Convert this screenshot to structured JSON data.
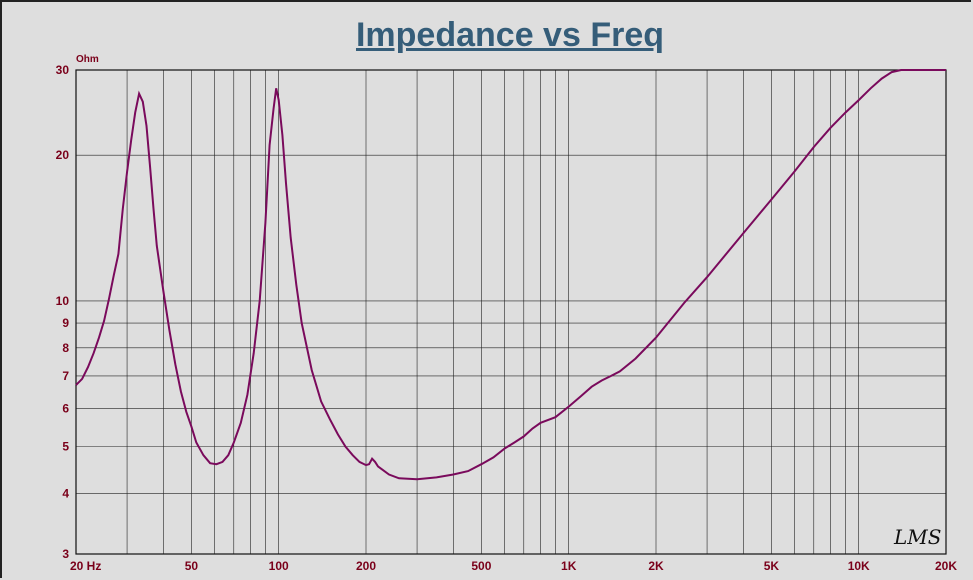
{
  "chart_data": {
    "type": "line",
    "title": "Impedance vs Freq",
    "ylabel": "Ohm",
    "xlabel": "",
    "x_scale": "log",
    "y_scale": "log",
    "xlim": [
      20,
      20000
    ],
    "ylim": [
      3,
      30
    ],
    "grid": true,
    "signature": "LMS",
    "x_ticks": [
      {
        "v": 20,
        "label": "20  Hz"
      },
      {
        "v": 50,
        "label": "50"
      },
      {
        "v": 100,
        "label": "100"
      },
      {
        "v": 200,
        "label": "200"
      },
      {
        "v": 500,
        "label": "500"
      },
      {
        "v": 1000,
        "label": "1K"
      },
      {
        "v": 2000,
        "label": "2K"
      },
      {
        "v": 5000,
        "label": "5K"
      },
      {
        "v": 10000,
        "label": "10K"
      },
      {
        "v": 20000,
        "label": "20K"
      }
    ],
    "y_ticks": [
      {
        "v": 3,
        "label": "3"
      },
      {
        "v": 4,
        "label": "4"
      },
      {
        "v": 5,
        "label": "5"
      },
      {
        "v": 6,
        "label": "6"
      },
      {
        "v": 7,
        "label": "7"
      },
      {
        "v": 8,
        "label": "8"
      },
      {
        "v": 9,
        "label": "9"
      },
      {
        "v": 10,
        "label": "10"
      },
      {
        "v": 20,
        "label": "20"
      },
      {
        "v": 30,
        "label": "30"
      }
    ],
    "series": [
      {
        "color": "#7a0a5c",
        "points": [
          [
            20,
            6.7
          ],
          [
            21,
            6.9
          ],
          [
            22,
            7.3
          ],
          [
            23,
            7.8
          ],
          [
            24,
            8.4
          ],
          [
            25,
            9.1
          ],
          [
            26,
            10.1
          ],
          [
            27,
            11.3
          ],
          [
            28,
            12.5
          ],
          [
            29,
            15.5
          ],
          [
            30,
            18.5
          ],
          [
            31,
            21.5
          ],
          [
            32,
            24.5
          ],
          [
            33,
            26.8
          ],
          [
            34,
            25.8
          ],
          [
            35,
            23.0
          ],
          [
            36,
            19.0
          ],
          [
            37,
            15.5
          ],
          [
            38,
            13.0
          ],
          [
            40,
            10.5
          ],
          [
            42,
            8.7
          ],
          [
            44,
            7.4
          ],
          [
            46,
            6.5
          ],
          [
            48,
            5.9
          ],
          [
            50,
            5.5
          ],
          [
            52,
            5.1
          ],
          [
            55,
            4.8
          ],
          [
            58,
            4.62
          ],
          [
            61,
            4.6
          ],
          [
            64,
            4.65
          ],
          [
            67,
            4.8
          ],
          [
            70,
            5.1
          ],
          [
            74,
            5.6
          ],
          [
            78,
            6.4
          ],
          [
            82,
            7.8
          ],
          [
            86,
            10.0
          ],
          [
            90,
            14.5
          ],
          [
            93,
            21.0
          ],
          [
            96,
            25.0
          ],
          [
            98,
            27.5
          ],
          [
            100,
            26.0
          ],
          [
            103,
            22.0
          ],
          [
            106,
            17.5
          ],
          [
            110,
            13.5
          ],
          [
            115,
            10.8
          ],
          [
            120,
            9.0
          ],
          [
            130,
            7.2
          ],
          [
            140,
            6.2
          ],
          [
            150,
            5.7
          ],
          [
            160,
            5.3
          ],
          [
            170,
            5.0
          ],
          [
            180,
            4.8
          ],
          [
            190,
            4.65
          ],
          [
            200,
            4.58
          ],
          [
            205,
            4.6
          ],
          [
            210,
            4.72
          ],
          [
            215,
            4.65
          ],
          [
            220,
            4.55
          ],
          [
            240,
            4.38
          ],
          [
            260,
            4.3
          ],
          [
            300,
            4.28
          ],
          [
            350,
            4.32
          ],
          [
            400,
            4.38
          ],
          [
            450,
            4.45
          ],
          [
            500,
            4.6
          ],
          [
            550,
            4.75
          ],
          [
            600,
            4.95
          ],
          [
            650,
            5.1
          ],
          [
            700,
            5.25
          ],
          [
            750,
            5.45
          ],
          [
            800,
            5.6
          ],
          [
            900,
            5.75
          ],
          [
            1000,
            6.05
          ],
          [
            1100,
            6.35
          ],
          [
            1200,
            6.65
          ],
          [
            1300,
            6.85
          ],
          [
            1400,
            7.0
          ],
          [
            1500,
            7.15
          ],
          [
            1700,
            7.6
          ],
          [
            2000,
            8.4
          ],
          [
            2500,
            9.9
          ],
          [
            3000,
            11.2
          ],
          [
            4000,
            13.8
          ],
          [
            5000,
            16.2
          ],
          [
            6000,
            18.5
          ],
          [
            7000,
            20.8
          ],
          [
            8000,
            22.8
          ],
          [
            9000,
            24.5
          ],
          [
            10000,
            26.0
          ],
          [
            11000,
            27.5
          ],
          [
            12000,
            28.8
          ],
          [
            13000,
            29.7
          ],
          [
            14000,
            30.0
          ],
          [
            16000,
            30.0
          ],
          [
            18000,
            30.0
          ],
          [
            20000,
            30.0
          ]
        ]
      }
    ]
  }
}
